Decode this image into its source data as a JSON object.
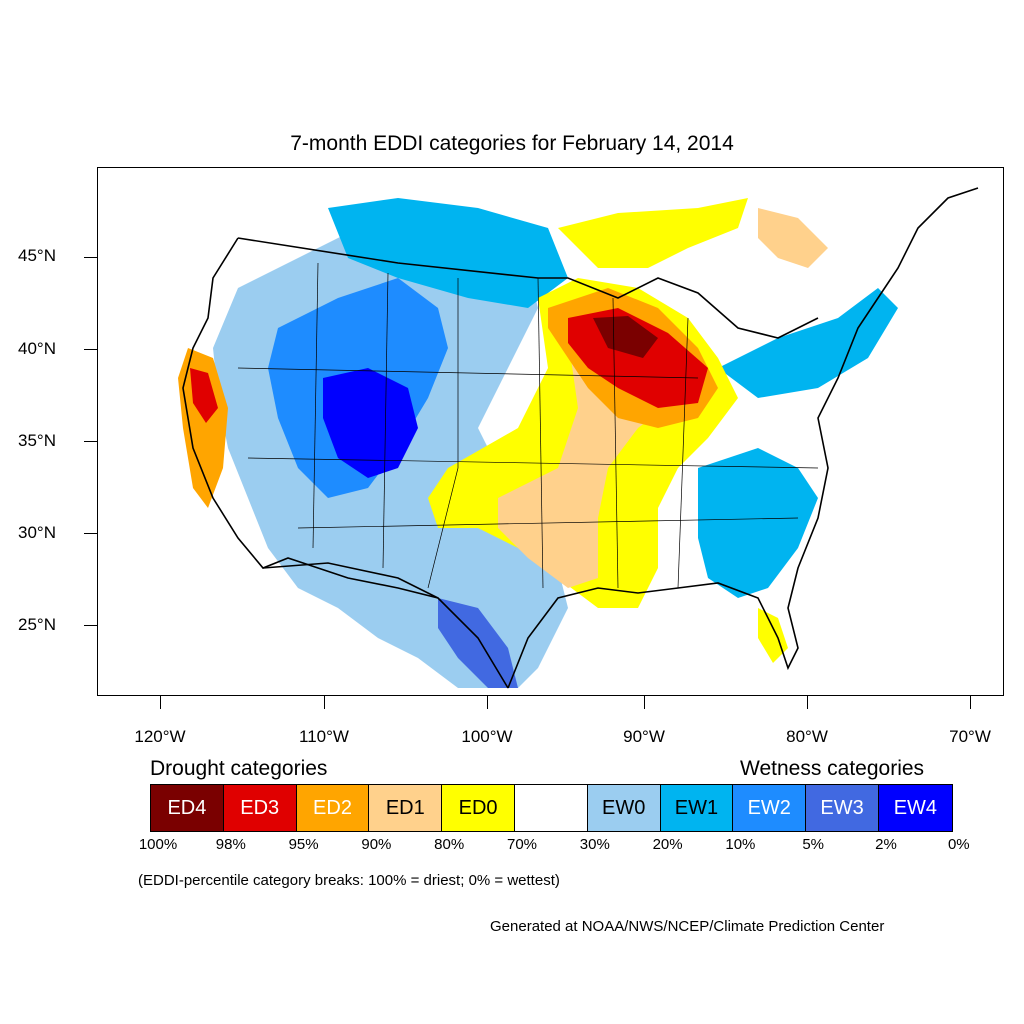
{
  "title": "7-month EDDI categories for February 14, 2014",
  "axes": {
    "lat_labels": [
      "45°N",
      "40°N",
      "35°N",
      "30°N",
      "25°N"
    ],
    "lon_labels": [
      "120°W",
      "110°W",
      "100°W",
      "90°W",
      "80°W",
      "70°W"
    ]
  },
  "legend": {
    "drought_heading": "Drought categories",
    "wetness_heading": "Wetness categories",
    "categories": [
      {
        "label": "ED4",
        "color": "#7a0000",
        "text_color": "#ffffff"
      },
      {
        "label": "ED3",
        "color": "#e00000",
        "text_color": "#ffffff"
      },
      {
        "label": "ED2",
        "color": "#ffa500",
        "text_color": "#ffffff"
      },
      {
        "label": "ED1",
        "color": "#ffd18c",
        "text_color": "#000000"
      },
      {
        "label": "ED0",
        "color": "#ffff00",
        "text_color": "#000000"
      },
      {
        "label": "",
        "color": "#ffffff",
        "text_color": "#000000"
      },
      {
        "label": "EW0",
        "color": "#9bcdf0",
        "text_color": "#000000"
      },
      {
        "label": "EW1",
        "color": "#00b4f0",
        "text_color": "#000000"
      },
      {
        "label": "EW2",
        "color": "#1e8cff",
        "text_color": "#ffffff"
      },
      {
        "label": "EW3",
        "color": "#4169e1",
        "text_color": "#ffffff"
      },
      {
        "label": "EW4",
        "color": "#0000ff",
        "text_color": "#ffffff"
      }
    ],
    "percentiles": [
      "100%",
      "98%",
      "95%",
      "90%",
      "80%",
      "70%",
      "30%",
      "20%",
      "10%",
      "5%",
      "2%",
      "0%"
    ]
  },
  "note": "(EDDI-percentile category breaks: 100% = driest; 0% = wettest)",
  "credit": "Generated at NOAA/NWS/NCEP/Climate Prediction Center"
}
